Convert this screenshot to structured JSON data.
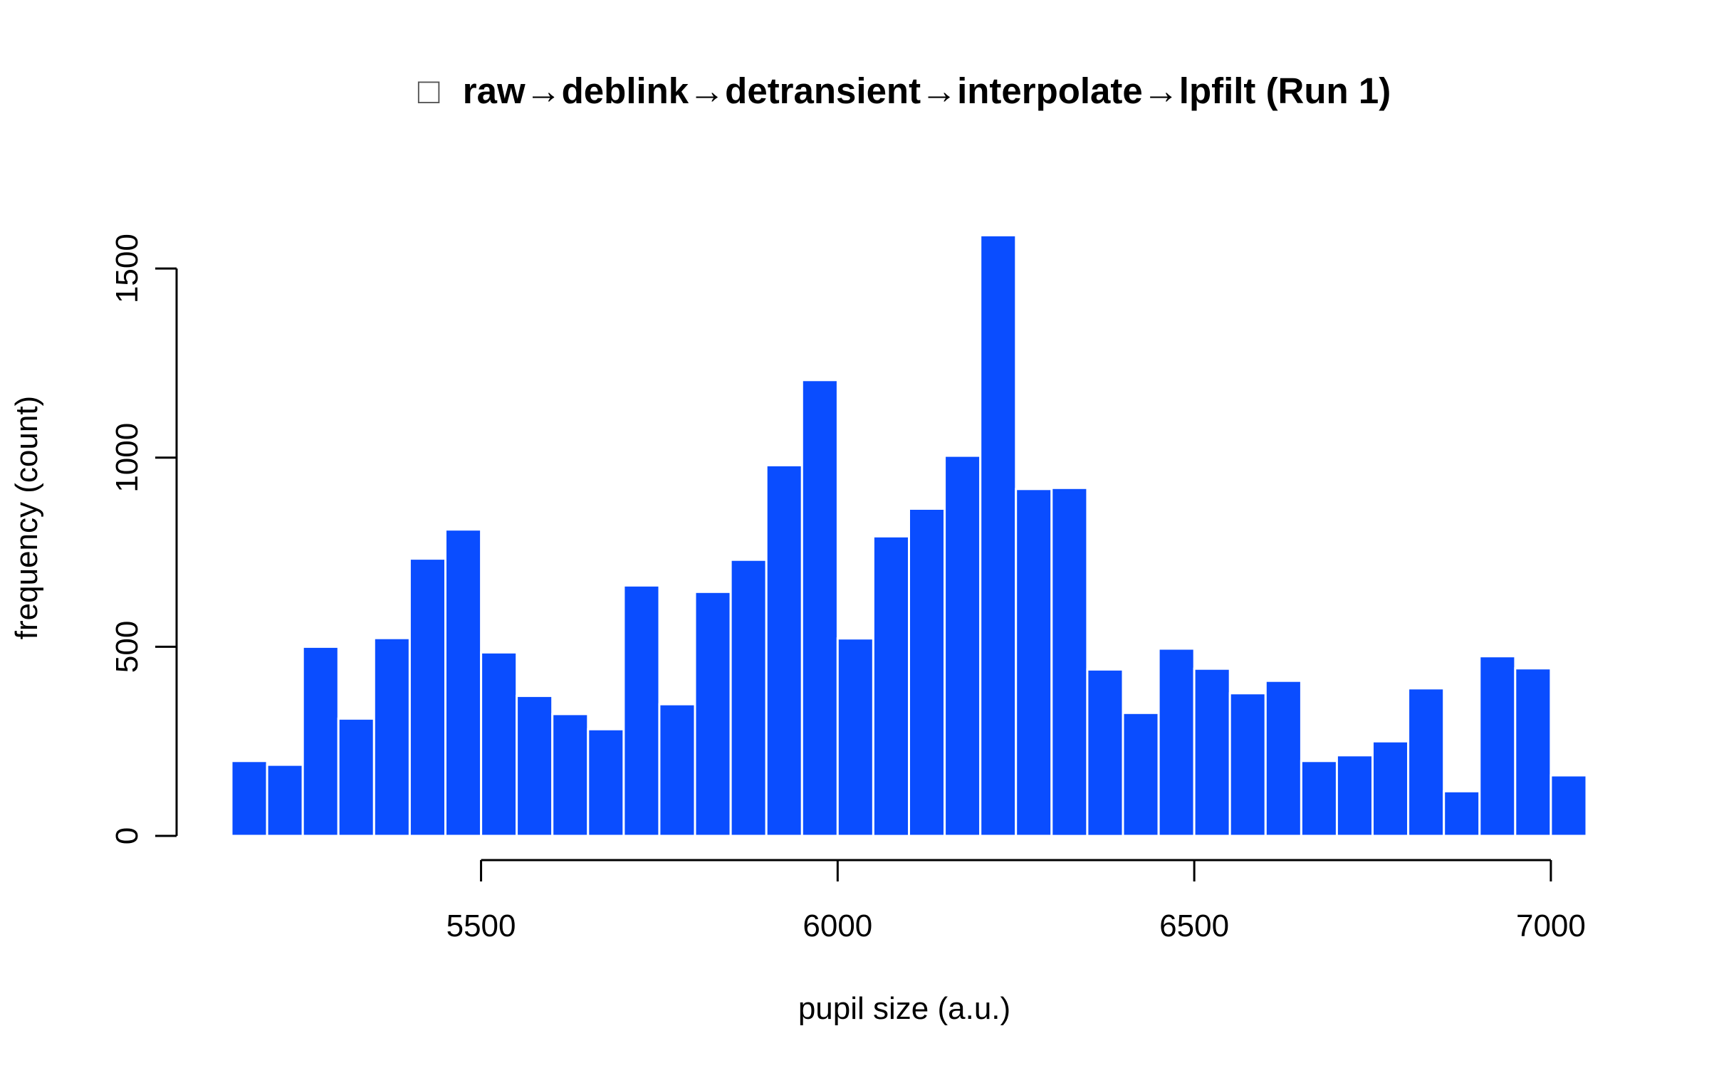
{
  "chart_data": {
    "type": "bar",
    "title": "raw→deblink→detransient→interpolate→lpfilt (Run 1)",
    "title_glyph": "□",
    "xlabel": "pupil size (a.u.)",
    "ylabel": "frequency (count)",
    "bar_color": "#0a4dff",
    "bin_width": 50,
    "bin_starts": [
      5150,
      5200,
      5250,
      5300,
      5350,
      5400,
      5450,
      5500,
      5550,
      5600,
      5650,
      5700,
      5750,
      5800,
      5850,
      5900,
      5950,
      6000,
      6050,
      6100,
      6150,
      6200,
      6250,
      6300,
      6350,
      6400,
      6450,
      6500,
      6550,
      6600,
      6650,
      6700,
      6750,
      6800,
      6850,
      6900,
      6950,
      7000
    ],
    "values": [
      198,
      188,
      500,
      310,
      523,
      733,
      810,
      485,
      370,
      322,
      282,
      662,
      348,
      645,
      730,
      980,
      1205,
      522,
      792,
      865,
      1005,
      1588,
      917,
      920,
      440,
      325,
      495,
      442,
      377,
      410,
      198,
      213,
      250,
      390,
      118,
      475,
      443,
      160
    ],
    "xlim": [
      5150,
      7050
    ],
    "ylim": [
      0,
      1600
    ],
    "x_ticks": [
      5500,
      6000,
      6500,
      7000
    ],
    "x_tick_labels": [
      "5500",
      "6000",
      "6500",
      "7000"
    ],
    "y_ticks": [
      0,
      500,
      1000,
      1500
    ],
    "y_tick_labels": [
      "0",
      "500",
      "1000",
      "1500"
    ],
    "grid": false,
    "legend": "none"
  }
}
